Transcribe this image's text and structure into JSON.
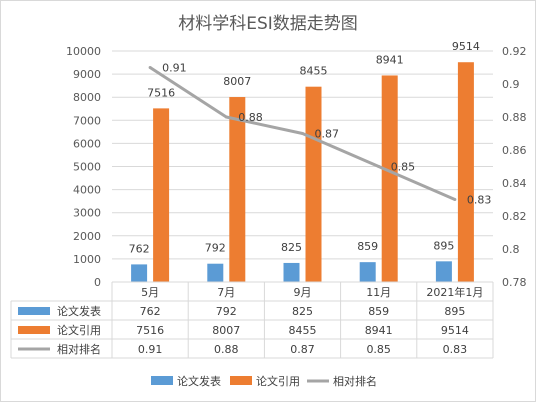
{
  "chart_data": {
    "type": "bar",
    "title": "材料学科ESI数据走势图",
    "categories": [
      "5月",
      "7月",
      "9月",
      "11月",
      "2021年1月"
    ],
    "series": [
      {
        "name": "论文发表",
        "type": "bar",
        "axis": "left",
        "color": "#5b9bd5",
        "values": [
          762,
          792,
          825,
          859,
          895
        ]
      },
      {
        "name": "论文引用",
        "type": "bar",
        "axis": "left",
        "color": "#ed7d31",
        "values": [
          7516,
          8007,
          8455,
          8941,
          9514
        ]
      },
      {
        "name": "相对排名",
        "type": "line",
        "axis": "right",
        "color": "#a5a5a5",
        "values": [
          0.91,
          0.88,
          0.87,
          0.85,
          0.83
        ]
      }
    ],
    "y_left": {
      "min": 0,
      "max": 10000,
      "ticks": [
        "0",
        "1000",
        "2000",
        "3000",
        "4000",
        "5000",
        "6000",
        "7000",
        "8000",
        "9000",
        "10000"
      ]
    },
    "y_right": {
      "min": 0.78,
      "max": 0.92,
      "ticks": [
        "0.78",
        "0.8",
        "0.82",
        "0.84",
        "0.86",
        "0.88",
        "0.9",
        "0.92"
      ]
    },
    "grid": true,
    "data_table": true,
    "legend_position": "bottom"
  }
}
